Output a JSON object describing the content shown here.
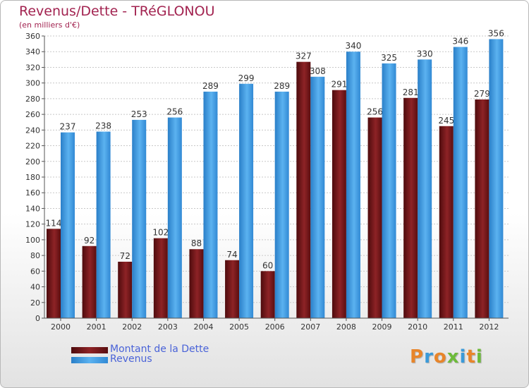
{
  "chart_data": {
    "type": "bar",
    "title": "Revenus/Dette - TRéGLONOU",
    "subtitle": "(en milliers d'€)",
    "categories": [
      "2000",
      "2001",
      "2002",
      "2003",
      "2004",
      "2005",
      "2006",
      "2007",
      "2008",
      "2009",
      "2010",
      "2011",
      "2012"
    ],
    "series": [
      {
        "name": "Montant de la Dette",
        "color": "#7a1519",
        "values": [
          114,
          92,
          72,
          102,
          88,
          74,
          60,
          327,
          291,
          256,
          281,
          245,
          279
        ]
      },
      {
        "name": "Revenus",
        "color": "#4aa0e6",
        "values": [
          237,
          238,
          253,
          256,
          289,
          299,
          289,
          308,
          340,
          325,
          330,
          346,
          356
        ]
      }
    ],
    "ylim": [
      0,
      360
    ],
    "ytick_step": 20,
    "grid": true,
    "legend_position": "bottom-left"
  },
  "logo": {
    "letters": [
      "P",
      "r",
      "o",
      "x",
      "i",
      "t",
      "i"
    ],
    "colors": [
      "#e8852a",
      "#3a9ad9",
      "#e8852a",
      "#6dbb3a",
      "#3a9ad9",
      "#e8852a",
      "#6dbb3a"
    ]
  }
}
